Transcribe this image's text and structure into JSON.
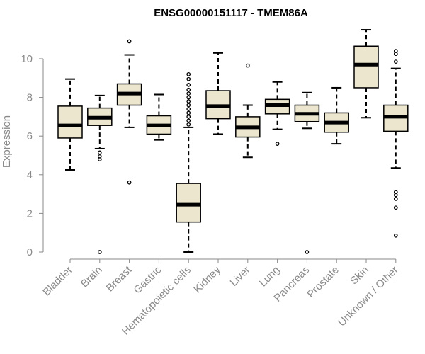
{
  "chart_data": {
    "type": "boxplot",
    "title": "ENSG00000151117 - TMEM86A",
    "xlabel": "",
    "ylabel": "Expression",
    "ylim": [
      0,
      10
    ],
    "yticks": [
      0,
      2,
      4,
      6,
      8,
      10
    ],
    "box_color": "#ede6cf",
    "categories": [
      "Bladder",
      "Brain",
      "Breast",
      "Gastric",
      "Hematopoietic cells",
      "Kidney",
      "Liver",
      "Lung",
      "Pancreas",
      "Prostate",
      "Skin",
      "Unknown / Other"
    ],
    "series": [
      {
        "name": "Bladder",
        "whisker_low": 4.25,
        "q1": 5.9,
        "median": 6.55,
        "q3": 7.55,
        "whisker_high": 8.95,
        "outliers": []
      },
      {
        "name": "Brain",
        "whisker_low": 5.35,
        "q1": 6.55,
        "median": 6.95,
        "q3": 7.45,
        "whisker_high": 8.1,
        "outliers": [
          0.0,
          4.8,
          4.95,
          5.15
        ]
      },
      {
        "name": "Breast",
        "whisker_low": 6.45,
        "q1": 7.6,
        "median": 8.2,
        "q3": 8.7,
        "whisker_high": 10.2,
        "outliers": [
          3.6,
          10.9
        ]
      },
      {
        "name": "Gastric",
        "whisker_low": 5.8,
        "q1": 6.1,
        "median": 6.55,
        "q3": 7.05,
        "whisker_high": 8.15,
        "outliers": []
      },
      {
        "name": "Hematopoietic cells",
        "whisker_low": 0.0,
        "q1": 1.55,
        "median": 2.45,
        "q3": 3.55,
        "whisker_high": 6.45,
        "outliers": [
          6.6,
          6.8,
          7.0,
          7.2,
          7.4,
          7.6,
          7.8,
          8.0,
          8.2,
          8.4,
          8.65,
          8.95,
          9.2
        ]
      },
      {
        "name": "Kidney",
        "whisker_low": 6.1,
        "q1": 6.9,
        "median": 7.55,
        "q3": 8.35,
        "whisker_high": 10.3,
        "outliers": []
      },
      {
        "name": "Liver",
        "whisker_low": 4.9,
        "q1": 5.95,
        "median": 6.45,
        "q3": 7.0,
        "whisker_high": 7.6,
        "outliers": [
          9.65
        ]
      },
      {
        "name": "Lung",
        "whisker_low": 6.35,
        "q1": 7.15,
        "median": 7.6,
        "q3": 7.9,
        "whisker_high": 8.8,
        "outliers": [
          5.6
        ]
      },
      {
        "name": "Pancreas",
        "whisker_low": 6.4,
        "q1": 6.75,
        "median": 7.15,
        "q3": 7.6,
        "whisker_high": 8.25,
        "outliers": [
          0.0
        ]
      },
      {
        "name": "Prostate",
        "whisker_low": 5.6,
        "q1": 6.2,
        "median": 6.7,
        "q3": 7.2,
        "whisker_high": 8.5,
        "outliers": []
      },
      {
        "name": "Skin",
        "whisker_low": 6.95,
        "q1": 8.5,
        "median": 9.7,
        "q3": 10.65,
        "whisker_high": 11.5,
        "outliers": []
      },
      {
        "name": "Unknown / Other",
        "whisker_low": 4.35,
        "q1": 6.25,
        "median": 7.0,
        "q3": 7.6,
        "whisker_high": 9.5,
        "outliers": [
          0.85,
          2.3,
          2.75,
          2.95,
          3.1,
          9.85,
          10.25,
          10.4
        ]
      }
    ]
  }
}
